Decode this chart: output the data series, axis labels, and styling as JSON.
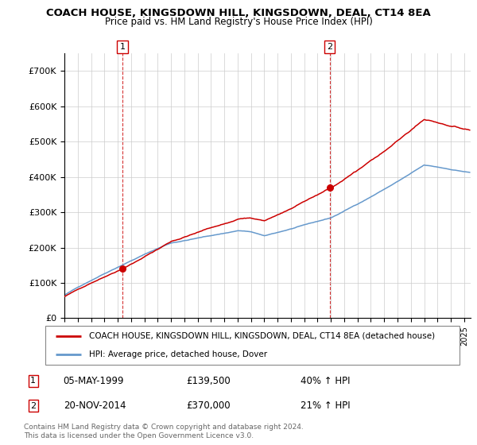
{
  "title": "COACH HOUSE, KINGSDOWN HILL, KINGSDOWN, DEAL, CT14 8EA",
  "subtitle": "Price paid vs. HM Land Registry's House Price Index (HPI)",
  "legend_line1": "COACH HOUSE, KINGSDOWN HILL, KINGSDOWN, DEAL, CT14 8EA (detached house)",
  "legend_line2": "HPI: Average price, detached house, Dover",
  "annotation1_date": "05-MAY-1999",
  "annotation1_price": "£139,500",
  "annotation1_hpi": "40% ↑ HPI",
  "annotation2_date": "20-NOV-2014",
  "annotation2_price": "£370,000",
  "annotation2_hpi": "21% ↑ HPI",
  "footer": "Contains HM Land Registry data © Crown copyright and database right 2024.\nThis data is licensed under the Open Government Licence v3.0.",
  "property_color": "#cc0000",
  "hpi_color": "#6699cc",
  "annotation_box_color": "#cc0000",
  "ylim": [
    0,
    750000
  ],
  "yticks": [
    0,
    100000,
    200000,
    300000,
    400000,
    500000,
    600000,
    700000
  ],
  "ytick_labels": [
    "£0",
    "£100K",
    "£200K",
    "£300K",
    "£400K",
    "£500K",
    "£600K",
    "£700K"
  ],
  "purchase1_year": 1999.35,
  "purchase1_price": 139500,
  "purchase2_year": 2014.9,
  "purchase2_price": 370000,
  "xmin": 1995.0,
  "xmax": 2025.5
}
